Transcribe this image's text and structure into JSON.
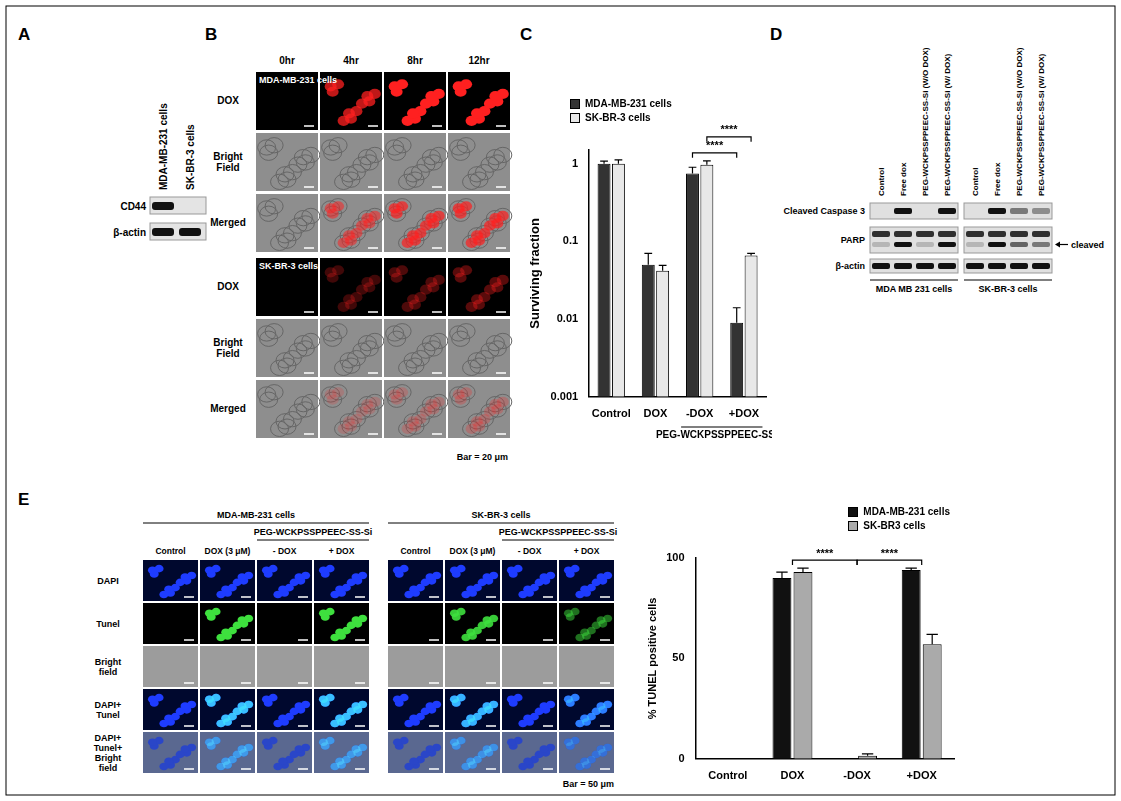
{
  "panel_labels": [
    "A",
    "B",
    "C",
    "D",
    "E"
  ],
  "panel_a": {
    "lanes": [
      "MDA-MB-231 cells",
      "SK-BR-3 cells"
    ],
    "rows": [
      "CD44",
      "β-actin"
    ]
  },
  "panel_b": {
    "time_points": [
      "0hr",
      "4hr",
      "8hr",
      "12hr"
    ],
    "groups": [
      {
        "cell_line": "MDA-MB-231 cells",
        "rows": [
          "DOX",
          "Bright Field",
          "Merged"
        ]
      },
      {
        "cell_line": "SK-BR-3 cells",
        "rows": [
          "DOX",
          "Bright Field",
          "Merged"
        ]
      }
    ],
    "scale_bar": "Bar = 20 μm"
  },
  "panel_d": {
    "groups": [
      "MDA MB 231 cells",
      "SK-BR-3 cells"
    ],
    "lanes": [
      "Control",
      "Free dox",
      "PEG-WCKPSSPPEEC-SS-Si (W/O DOX)",
      "PEG-WCKPSSPPEEC-SS-Si (W/ DOX)"
    ],
    "rows": [
      "Cleaved Caspase 3",
      "PARP",
      "β-actin"
    ],
    "arrow_label": "cleaved"
  },
  "panel_e": {
    "cell_lines": [
      "MDA-MB-231 cells",
      "SK-BR-3 cells"
    ],
    "treatment_label": "PEG-WCKPSSPPEEC-SS-Si",
    "columns": [
      "Control",
      "DOX (3 μM)",
      "- DOX",
      "+ DOX"
    ],
    "rows": [
      "DAPI",
      "Tunel",
      "Bright field",
      "DAPI+ Tunel",
      "DAPI+ Tunel+ Bright field"
    ],
    "scale_bar": "Bar = 50 μm"
  },
  "chart_data": [
    {
      "type": "bar",
      "y_label": "Surviving fraction",
      "categories": [
        "Control",
        "DOX",
        "-DOX",
        "+DOX"
      ],
      "series": [
        {
          "name": "MDA-MB-231 cells",
          "color": "#333333",
          "values": [
            1,
            0.05,
            0.75,
            0.009
          ],
          "errors": [
            0.08,
            0.02,
            0.15,
            0.005
          ]
        },
        {
          "name": "SK-BR-3 cells",
          "color": "#e8e8e8",
          "values": [
            1,
            0.042,
            0.97,
            0.066
          ],
          "errors": [
            0.12,
            0.007,
            0.12,
            0.004
          ]
        }
      ],
      "log": "y",
      "ylim": [
        0.001,
        1.5
      ],
      "yticks": [
        0.001,
        0.01,
        0.1,
        1
      ],
      "grid": false,
      "legend": "top-left",
      "annotations": [
        {
          "text": "PEG-WCKPSSPPEEC-SS-Si",
          "categories": [
            "-DOX",
            "+DOX"
          ]
        }
      ],
      "comparisons": [
        {
          "series": "MDA-MB-231 cells",
          "from": "-DOX",
          "to": "+DOX",
          "label": "****"
        },
        {
          "series": "SK-BR-3 cells",
          "from": "-DOX",
          "to": "+DOX",
          "label": "****"
        }
      ]
    },
    {
      "type": "bar",
      "y_label": "% TUNEL positive cells",
      "categories": [
        "Control",
        "DOX",
        "-DOX",
        "+DOX"
      ],
      "series": [
        {
          "name": "MDA-MB-231 cells",
          "color": "#111111",
          "values": [
            0,
            90,
            0,
            94
          ],
          "errors": [
            0,
            3,
            0,
            1
          ]
        },
        {
          "name": "SK-BR3 cells",
          "color": "#aaaaaa",
          "values": [
            0,
            93,
            1.5,
            57
          ],
          "errors": [
            0,
            2,
            1,
            5
          ]
        }
      ],
      "ylim": [
        0,
        100
      ],
      "yticks": [
        0,
        50,
        100
      ],
      "grid": false,
      "legend": "top-right",
      "comparisons": [
        {
          "from": "DOX",
          "to": "-DOX",
          "label": "****"
        },
        {
          "from": "-DOX",
          "to": "+DOX",
          "label": "****"
        }
      ]
    }
  ]
}
